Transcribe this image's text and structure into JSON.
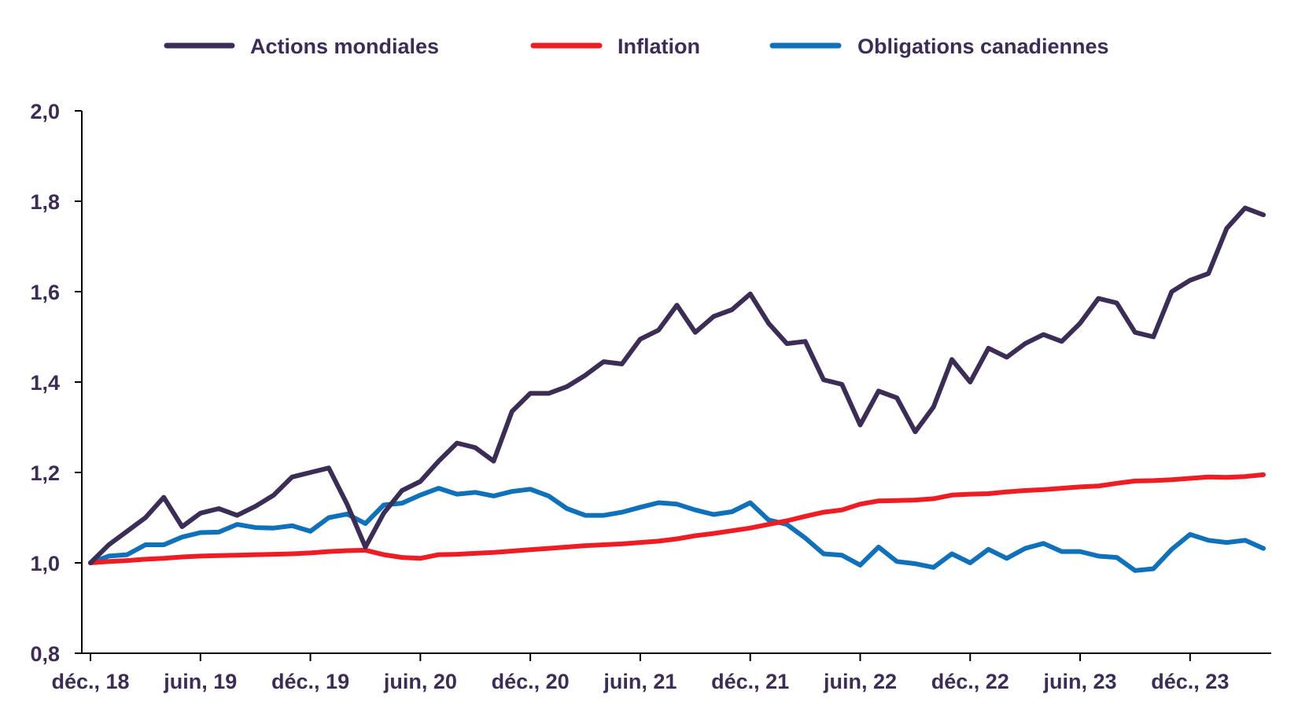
{
  "chart_data": {
    "type": "line",
    "title": "",
    "xlabel": "",
    "ylabel": "",
    "ylim": [
      0.8,
      2.0
    ],
    "yticks": [
      "2,0",
      "1,8",
      "1,6",
      "1,4",
      "1,2",
      "1,0",
      "0,8"
    ],
    "ytick_values": [
      2.0,
      1.8,
      1.6,
      1.4,
      1.2,
      1.0,
      0.8
    ],
    "xtick_labels": [
      "déc., 18",
      "juin, 19",
      "déc., 19",
      "juin, 20",
      "déc., 20",
      "juin, 21",
      "déc., 21",
      "juin, 22",
      "déc., 22",
      "juin, 23",
      "déc., 23"
    ],
    "xtick_month_index": [
      0,
      6,
      12,
      18,
      24,
      30,
      36,
      42,
      48,
      54,
      60
    ],
    "n_months": 65,
    "legend_position": "top",
    "series": [
      {
        "name": "Actions mondiales",
        "color": "#3b2d55",
        "values": [
          1.0,
          1.04,
          1.07,
          1.1,
          1.145,
          1.08,
          1.11,
          1.12,
          1.105,
          1.125,
          1.15,
          1.19,
          1.2,
          1.21,
          1.13,
          1.035,
          1.11,
          1.16,
          1.18,
          1.225,
          1.265,
          1.255,
          1.225,
          1.335,
          1.375,
          1.375,
          1.39,
          1.415,
          1.445,
          1.44,
          1.495,
          1.515,
          1.57,
          1.51,
          1.545,
          1.56,
          1.595,
          1.53,
          1.485,
          1.49,
          1.405,
          1.395,
          1.305,
          1.38,
          1.365,
          1.29,
          1.345,
          1.45,
          1.4,
          1.475,
          1.455,
          1.485,
          1.505,
          1.49,
          1.53,
          1.585,
          1.575,
          1.51,
          1.5,
          1.6,
          1.625,
          1.64,
          1.74,
          1.785,
          1.77
        ]
      },
      {
        "name": "Inflation",
        "color": "#ee1d23",
        "values": [
          1.0,
          1.003,
          1.005,
          1.008,
          1.01,
          1.013,
          1.015,
          1.016,
          1.017,
          1.018,
          1.019,
          1.02,
          1.022,
          1.025,
          1.027,
          1.028,
          1.018,
          1.012,
          1.01,
          1.018,
          1.019,
          1.021,
          1.023,
          1.026,
          1.029,
          1.032,
          1.035,
          1.038,
          1.04,
          1.042,
          1.045,
          1.048,
          1.053,
          1.06,
          1.065,
          1.071,
          1.077,
          1.085,
          1.093,
          1.103,
          1.112,
          1.117,
          1.13,
          1.137,
          1.138,
          1.139,
          1.142,
          1.15,
          1.152,
          1.153,
          1.157,
          1.16,
          1.162,
          1.165,
          1.168,
          1.17,
          1.176,
          1.181,
          1.182,
          1.184,
          1.187,
          1.19,
          1.189,
          1.191,
          1.195
        ]
      },
      {
        "name": "Obligations canadiennes",
        "color": "#0f71ba",
        "values": [
          1.0,
          1.015,
          1.018,
          1.04,
          1.04,
          1.057,
          1.067,
          1.068,
          1.085,
          1.078,
          1.077,
          1.082,
          1.07,
          1.1,
          1.108,
          1.087,
          1.128,
          1.132,
          1.15,
          1.165,
          1.152,
          1.156,
          1.148,
          1.158,
          1.163,
          1.148,
          1.12,
          1.105,
          1.105,
          1.112,
          1.123,
          1.133,
          1.13,
          1.117,
          1.107,
          1.113,
          1.133,
          1.095,
          1.085,
          1.055,
          1.02,
          1.017,
          0.995,
          1.035,
          1.003,
          0.998,
          0.99,
          1.02,
          1.0,
          1.03,
          1.01,
          1.032,
          1.043,
          1.025,
          1.025,
          1.015,
          1.012,
          0.983,
          0.987,
          1.03,
          1.063,
          1.05,
          1.045,
          1.05,
          1.032
        ]
      }
    ]
  }
}
